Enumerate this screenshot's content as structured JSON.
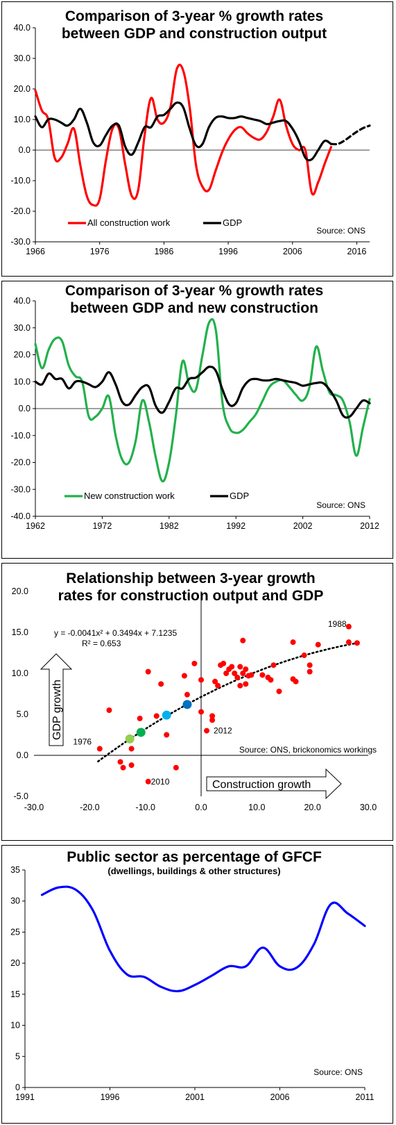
{
  "chart_data": [
    {
      "id": "c1",
      "type": "line",
      "title_lines": [
        "Comparison of 3-year % growth rates",
        "between GDP and construction output"
      ],
      "ylim": [
        -30,
        40
      ],
      "yticks": [
        "40.0",
        "30.0",
        "20.0",
        "10.0",
        "0.0",
        "-10.0",
        "-20.0",
        "-30.0"
      ],
      "xlim": [
        1966,
        2018
      ],
      "xticks": [
        "1966",
        "1976",
        "1986",
        "1996",
        "2006",
        "2016"
      ],
      "source": "Source:  ONS",
      "series": [
        {
          "name": "All construction work",
          "color": "#ff0000",
          "x": [
            1966,
            1967,
            1968,
            1969,
            1970,
            1971,
            1972,
            1973,
            1974,
            1975,
            1976,
            1977,
            1978,
            1979,
            1980,
            1981,
            1982,
            1983,
            1984,
            1985,
            1986,
            1987,
            1988,
            1989,
            1990,
            1991,
            1992,
            1993,
            1994,
            1995,
            1996,
            1997,
            1998,
            1999,
            2000,
            2001,
            2002,
            2003,
            2004,
            2005,
            2006,
            2007,
            2008,
            2009,
            2010,
            2011,
            2012
          ],
          "values": [
            19.5,
            13,
            10,
            -2.5,
            -2.5,
            2,
            7,
            -5,
            -15,
            -18,
            -16,
            -3,
            7,
            7,
            -5,
            -15,
            -13,
            5,
            17,
            10,
            9,
            14,
            26.5,
            26,
            14,
            -5,
            -12,
            -13,
            -7,
            -1,
            3.5,
            6.5,
            7.5,
            5.5,
            4,
            3.5,
            6,
            11,
            16.5,
            8,
            2,
            0,
            0,
            -14,
            -10.5,
            -4.5,
            1
          ]
        },
        {
          "name": "GDP",
          "color": "#000000",
          "x": [
            1966,
            1967,
            1968,
            1969,
            1970,
            1971,
            1972,
            1973,
            1974,
            1975,
            1976,
            1977,
            1978,
            1979,
            1980,
            1981,
            1982,
            1983,
            1984,
            1985,
            1986,
            1987,
            1988,
            1989,
            1990,
            1991,
            1992,
            1993,
            1994,
            1995,
            1996,
            1997,
            1998,
            1999,
            2000,
            2001,
            2002,
            2003,
            2004,
            2005,
            2006,
            2007,
            2008,
            2009,
            2010,
            2011,
            2012
          ],
          "values": [
            11,
            7.5,
            10,
            10,
            9,
            8,
            10,
            13.5,
            9,
            2.5,
            1.5,
            5,
            8,
            8,
            1,
            -1.5,
            2.5,
            7.5,
            7.5,
            11,
            11.5,
            13.5,
            15.5,
            14,
            7,
            1.5,
            2,
            7.5,
            10.5,
            11,
            10.5,
            10.5,
            11,
            10.5,
            10,
            9.5,
            8.5,
            9,
            9.5,
            9.5,
            7,
            3,
            -2.5,
            -3,
            0,
            3,
            2
          ]
        },
        {
          "name": "",
          "color": "#000000",
          "dashed": true,
          "x": [
            2012,
            2013,
            2014,
            2015,
            2016,
            2017,
            2018
          ],
          "values": [
            2,
            2,
            3,
            4.5,
            6,
            7.2,
            8
          ]
        }
      ]
    },
    {
      "id": "c2",
      "type": "line",
      "title_lines": [
        "Comparison of 3-year % growth rates",
        "between GDP and new construction"
      ],
      "ylim": [
        -40,
        40
      ],
      "yticks": [
        "40.0",
        "30.0",
        "20.0",
        "10.0",
        "0.0",
        "-10.0",
        "-20.0",
        "-30.0",
        "-40.0"
      ],
      "xlim": [
        1962,
        2012
      ],
      "xticks": [
        "1962",
        "1972",
        "1982",
        "1992",
        "2002",
        "2012"
      ],
      "source": "Source:  ONS",
      "series": [
        {
          "name": "New construction work",
          "color": "#22b14c",
          "x": [
            1962,
            1963,
            1964,
            1965,
            1966,
            1967,
            1968,
            1969,
            1970,
            1971,
            1972,
            1973,
            1974,
            1975,
            1976,
            1977,
            1978,
            1979,
            1980,
            1981,
            1982,
            1983,
            1984,
            1985,
            1986,
            1987,
            1988,
            1989,
            1990,
            1991,
            1992,
            1993,
            1994,
            1995,
            1996,
            1997,
            1998,
            1999,
            2000,
            2001,
            2002,
            2003,
            2004,
            2005,
            2006,
            2007,
            2008,
            2009,
            2010,
            2011,
            2012
          ],
          "values": [
            24,
            15,
            22,
            26,
            25,
            16,
            12,
            10,
            -3,
            -3,
            0,
            4.5,
            -10,
            -19,
            -20,
            -12,
            3,
            -5,
            -18,
            -27,
            -20,
            -3,
            17.5,
            9,
            7,
            20,
            32,
            29,
            2,
            -7,
            -9,
            -8,
            -5,
            -2,
            3,
            8,
            10,
            10.5,
            8,
            5,
            3,
            8,
            23,
            14,
            6,
            5,
            3,
            -5,
            -17.5,
            -7,
            3.5
          ]
        },
        {
          "name": "GDP",
          "color": "#000000",
          "x": [
            1962,
            1963,
            1964,
            1965,
            1966,
            1967,
            1968,
            1969,
            1970,
            1971,
            1972,
            1973,
            1974,
            1975,
            1976,
            1977,
            1978,
            1979,
            1980,
            1981,
            1982,
            1983,
            1984,
            1985,
            1986,
            1987,
            1988,
            1989,
            1990,
            1991,
            1992,
            1993,
            1994,
            1995,
            1996,
            1997,
            1998,
            1999,
            2000,
            2001,
            2002,
            2003,
            2004,
            2005,
            2006,
            2007,
            2008,
            2009,
            2010,
            2011,
            2012
          ],
          "values": [
            10,
            9,
            13,
            11,
            11,
            7.5,
            10,
            10,
            9,
            8,
            10,
            13.5,
            9,
            2.5,
            1.5,
            5,
            8,
            8,
            1,
            -1.5,
            2.5,
            7.5,
            7.5,
            11,
            11.5,
            13.5,
            15.5,
            14,
            7,
            1.5,
            2,
            7.5,
            10.5,
            11,
            10.5,
            10.5,
            11,
            10.5,
            10,
            9.5,
            8.5,
            9,
            9.5,
            9.5,
            7,
            3,
            -2.5,
            -3,
            0,
            3,
            2
          ]
        }
      ]
    },
    {
      "id": "c3",
      "type": "scatter",
      "title_lines": [
        "Relationship between 3-year growth",
        "rates for construction output and GDP"
      ],
      "xlim": [
        -30,
        30
      ],
      "ylim": [
        -5,
        20
      ],
      "xticks": [
        "-30.0",
        "-20.0",
        "-10.0",
        "0.0",
        "10.0",
        "20.0",
        "30.0"
      ],
      "yticks": [
        "20.0",
        "15.0",
        "10.0",
        "5.0",
        "0.0",
        "-5.0"
      ],
      "equation": "y = -0.0041x² + 0.3494x + 7.1235",
      "r2": "R² = 0.653",
      "trend": {
        "a": -0.0041,
        "b": 0.3494,
        "c": 7.1235,
        "x_range": [
          -18.5,
          28
        ]
      },
      "xlabel": "Construction growth",
      "ylabel": "GDP growth",
      "source": "Source:  ONS, brickonomics workings",
      "labels": [
        {
          "text": "1988",
          "x": 26.5,
          "y": 15.5
        },
        {
          "text": "1976",
          "x": -18,
          "y": 1.5
        },
        {
          "text": "2012",
          "x": 1,
          "y": 3
        },
        {
          "text": "2010",
          "x": -9.5,
          "y": -3.2
        }
      ],
      "points": [
        [
          -16.5,
          5.5
        ],
        [
          -18.2,
          0.8
        ],
        [
          -14.5,
          -0.8
        ],
        [
          -14,
          -1.5
        ],
        [
          -12.5,
          0.8
        ],
        [
          -12.5,
          -1.2
        ],
        [
          -11,
          4.5
        ],
        [
          -9.5,
          10.2
        ],
        [
          -9.5,
          -3.2
        ],
        [
          -8,
          4.8
        ],
        [
          -7.2,
          8.7
        ],
        [
          -6.2,
          2.5
        ],
        [
          -4.5,
          -1.5
        ],
        [
          -3,
          9.7
        ],
        [
          -2.5,
          7.4
        ],
        [
          -1.2,
          11.2
        ],
        [
          0,
          9.2
        ],
        [
          0,
          5.3
        ],
        [
          2,
          4.8
        ],
        [
          2,
          4.3
        ],
        [
          1,
          3
        ],
        [
          2.5,
          9
        ],
        [
          3,
          8.5
        ],
        [
          3.5,
          11
        ],
        [
          4,
          11.2
        ],
        [
          4.5,
          10
        ],
        [
          5,
          10.5
        ],
        [
          5.5,
          10.8
        ],
        [
          6,
          10
        ],
        [
          6.5,
          9.5
        ],
        [
          7,
          8.5
        ],
        [
          7,
          10.8
        ],
        [
          7.5,
          14
        ],
        [
          7.5,
          10
        ],
        [
          8,
          10.5
        ],
        [
          8,
          8.7
        ],
        [
          8.5,
          9.7
        ],
        [
          9,
          9.8
        ],
        [
          11,
          9.8
        ],
        [
          12,
          9.5
        ],
        [
          12.5,
          9.2
        ],
        [
          13,
          11
        ],
        [
          14,
          7.8
        ],
        [
          16.5,
          13.8
        ],
        [
          16.5,
          9.3
        ],
        [
          17,
          9
        ],
        [
          18.5,
          12.2
        ],
        [
          19.5,
          11
        ],
        [
          19.5,
          10.2
        ],
        [
          21,
          13.5
        ],
        [
          26.5,
          15.7
        ],
        [
          26.5,
          13.8
        ],
        [
          28,
          13.7
        ]
      ],
      "highlight": [
        {
          "x": -12.8,
          "y": 2.0,
          "color": "#92d050"
        },
        {
          "x": -10.8,
          "y": 2.8,
          "color": "#00b050"
        },
        {
          "x": -6.2,
          "y": 4.9,
          "color": "#00b0f0"
        },
        {
          "x": -2.5,
          "y": 6.2,
          "color": "#0070c0"
        }
      ]
    },
    {
      "id": "c4",
      "type": "line",
      "title": "Public sector as percentage of GFCF",
      "subtitle": "(dwellings, buildings & other structures)",
      "ylim": [
        0,
        35
      ],
      "yticks": [
        "35",
        "30",
        "25",
        "20",
        "15",
        "10",
        "5",
        "0"
      ],
      "xlim": [
        1991,
        2011
      ],
      "xticks": [
        "1991",
        "1996",
        "2001",
        "2006",
        "2011"
      ],
      "source": "Source:  ONS",
      "series": [
        {
          "name": "",
          "color": "#0000ff",
          "x": [
            1992,
            1993,
            1994,
            1995,
            1996,
            1997,
            1998,
            1999,
            2000,
            2001,
            2002,
            2003,
            2004,
            2005,
            2006,
            2007,
            2008,
            2009,
            2010,
            2011
          ],
          "values": [
            31,
            32.2,
            31.8,
            28.5,
            22,
            18.2,
            17.8,
            16.2,
            15.5,
            16.5,
            18,
            19.5,
            19.5,
            22.5,
            19.5,
            19.3,
            23,
            29.5,
            28,
            26
          ]
        }
      ]
    }
  ]
}
